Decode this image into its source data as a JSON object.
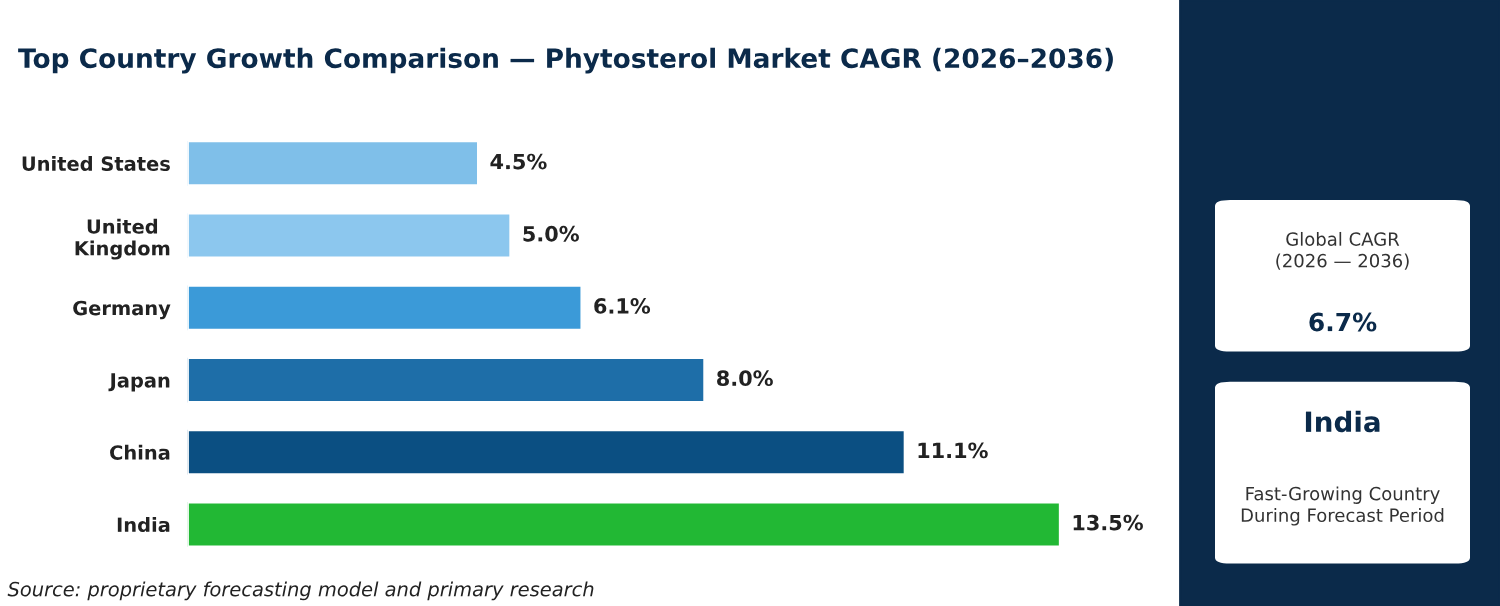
{
  "chart_data": {
    "type": "bar",
    "orientation": "horizontal",
    "title": "Top Country Growth Comparison — Phytosterol Market CAGR (2026–2036)",
    "categories": [
      "United States",
      "United\nKingdom",
      "Germany",
      "Japan",
      "China",
      "India"
    ],
    "values": [
      4.5,
      5.0,
      6.1,
      8.0,
      11.1,
      13.5
    ],
    "colors": [
      "#7fbfe9",
      "#8cc7ee",
      "#3b9ad8",
      "#1e6ea8",
      "#0b4f82",
      "#22b834"
    ],
    "value_labels": [
      "4.5%",
      "5.0%",
      "6.1%",
      "8.0%",
      "11.1%",
      "13.5%"
    ],
    "annotations": [
      "Source: proprietary forecasting model and primary research",
      "Global CAGR\n(2026 — 2036)",
      "6.7%",
      "India",
      "Fast-Growing Country\nDuring Forecast Period"
    ],
    "tick_labels": "y",
    "grid": false,
    "legend": false
  }
}
